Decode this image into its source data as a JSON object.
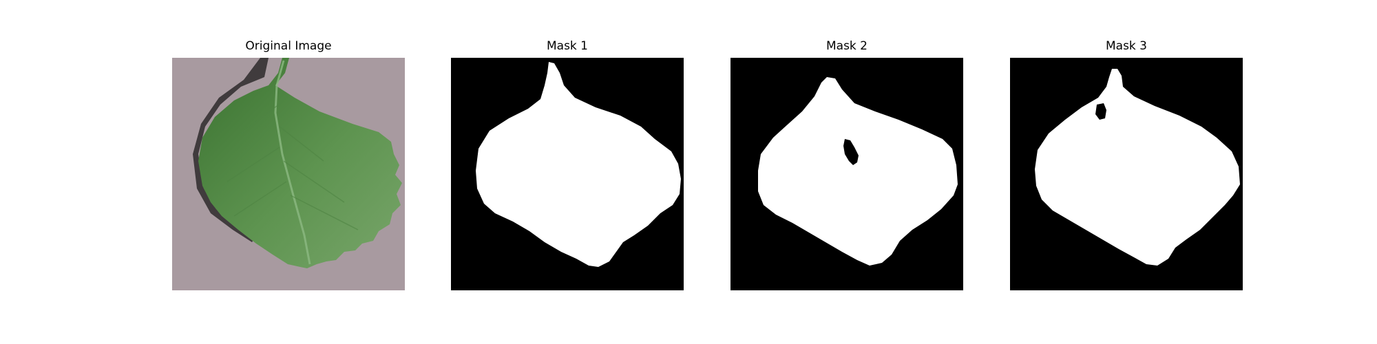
{
  "figure": {
    "panels": [
      {
        "title": "Original Image",
        "kind": "photo"
      },
      {
        "title": "Mask 1",
        "kind": "mask"
      },
      {
        "title": "Mask 2",
        "kind": "mask"
      },
      {
        "title": "Mask 3",
        "kind": "mask"
      }
    ],
    "colors": {
      "background": "#ffffff",
      "photo_background": "#a89aa0",
      "leaf_dark": "#3f7a33",
      "leaf_mid": "#5f9550",
      "leaf_light": "#7faa72",
      "shadow": "#2e2a2c",
      "mask_background": "#000000",
      "mask_foreground": "#ffffff"
    }
  }
}
